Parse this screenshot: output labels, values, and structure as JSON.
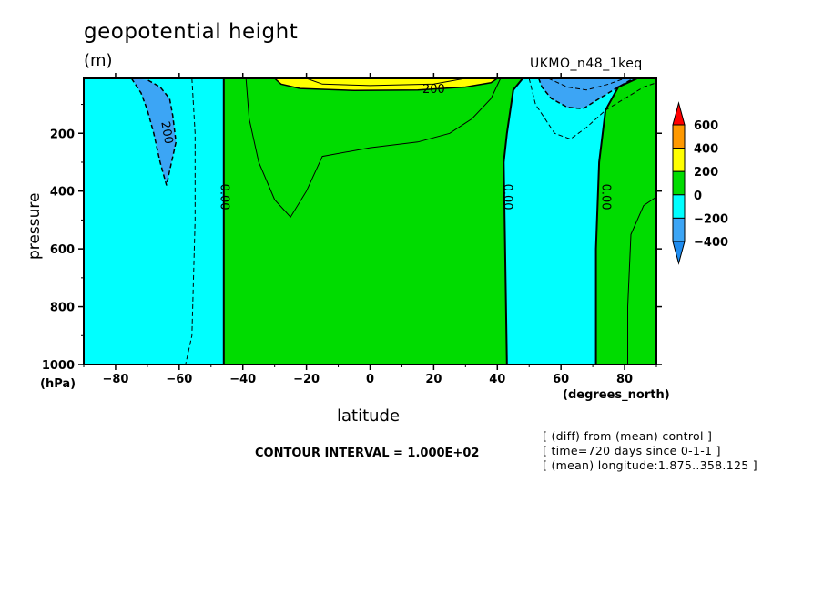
{
  "header": {
    "title": "geopotential height",
    "units": "(m)",
    "model": "UKMO_n48_1keq"
  },
  "footer": {
    "contour_interval": "CONTOUR INTERVAL = 1.000E+02",
    "meta": [
      "[ (diff) from (mean) control ]",
      "[ time=720 days since 0-1-1 ]",
      "[ (mean) longitude:1.875..358.125 ]"
    ]
  },
  "colors": {
    "c_lt400": "#1e8cf0",
    "c_m400_m200": "#3ca5f5",
    "c_m200_0": "#00ffff",
    "c_0_200": "#00dc00",
    "c_200_400": "#ffff00",
    "c_400_600": "#ff9900",
    "c_gt600": "#ff0000"
  },
  "chart_data": {
    "type": "contour",
    "title": "geopotential height",
    "units": "(m)",
    "xlabel": "latitude",
    "ylabel": "pressure",
    "x_units": "(degrees_north)",
    "y_units": "(hPa)",
    "xlim": [
      -90,
      90
    ],
    "ylim": [
      1000,
      10
    ],
    "xticks": [
      -80,
      -60,
      -40,
      -20,
      0,
      20,
      40,
      60,
      80
    ],
    "yticks": [
      200,
      400,
      600,
      800,
      1000
    ],
    "contour_interval": 100,
    "colorbar": {
      "levels": [
        -400,
        -200,
        0,
        200,
        400,
        600
      ],
      "labels": [
        "600",
        "400",
        "200",
        "0",
        "-200",
        "-400"
      ],
      "colors": [
        "#1e8cf0",
        "#3ca5f5",
        "#00ffff",
        "#00dc00",
        "#ffff00",
        "#ff9900",
        "#ff0000"
      ]
    },
    "contour_labels": [
      {
        "text": "200",
        "lat": -65,
        "p": 200
      },
      {
        "text": "0.00",
        "lat": -47,
        "p": 420
      },
      {
        "text": "200",
        "lat": 20,
        "p": 60
      },
      {
        "text": "0.00",
        "lat": 42,
        "p": 420
      },
      {
        "text": "0.00",
        "lat": 73,
        "p": 420
      }
    ],
    "regions": [
      {
        "range": "-200..0",
        "lat_min": -90,
        "lat_max": -46,
        "p_min": 10,
        "p_max": 1000
      },
      {
        "range": "-400..-200",
        "lat_min": -75,
        "lat_max": -62,
        "p_min": 10,
        "p_max": 380
      },
      {
        "range": "0..200",
        "lat_min": -46,
        "lat_max": 43,
        "p_min": 10,
        "p_max": 1000
      },
      {
        "range": "200..400",
        "lat_min": -30,
        "lat_max": 40,
        "p_min": 10,
        "p_max": 50
      },
      {
        "range": "-200..0",
        "lat_min": 43,
        "lat_max": 72,
        "p_min": 10,
        "p_max": 1000
      },
      {
        "range": "-400..-200",
        "lat_min": 53,
        "lat_max": 80,
        "p_min": 10,
        "p_max": 120
      },
      {
        "range": "0..200",
        "lat_min": 72,
        "lat_max": 90,
        "p_min": 10,
        "p_max": 1000
      }
    ]
  }
}
